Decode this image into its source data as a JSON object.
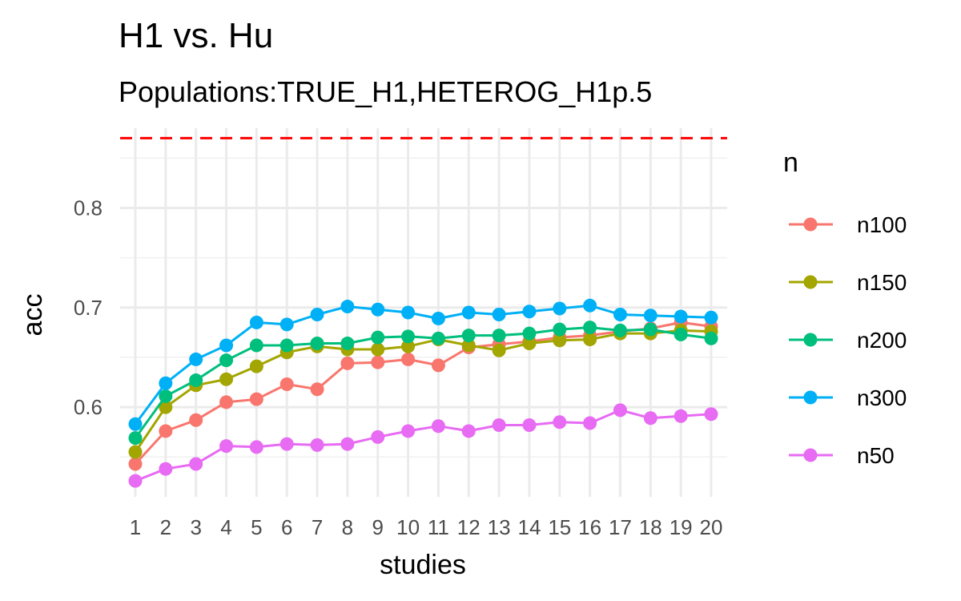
{
  "chart_data": {
    "type": "line",
    "title": "H1 vs. Hu",
    "subtitle": "Populations:TRUE_H1,HETEROG_H1p.5",
    "xlabel": "studies",
    "ylabel": "acc",
    "legend_title": "n",
    "legend_position": "right",
    "categories": [
      "1",
      "2",
      "3",
      "4",
      "5",
      "6",
      "7",
      "8",
      "9",
      "10",
      "11",
      "12",
      "13",
      "14",
      "15",
      "16",
      "17",
      "18",
      "19",
      "20"
    ],
    "ylim": [
      0.51,
      0.88
    ],
    "yticks": [
      0.6,
      0.7,
      0.8
    ],
    "y_tick_labels": [
      "0.6",
      "0.7",
      "0.8"
    ],
    "grid": true,
    "reference_line": {
      "y": 0.87,
      "style": "dashed",
      "color": "#ff0000"
    },
    "series": [
      {
        "name": "n100",
        "color": "#F8766D",
        "values": [
          0.543,
          0.576,
          0.587,
          0.605,
          0.608,
          0.623,
          0.618,
          0.644,
          0.645,
          0.648,
          0.642,
          0.66,
          0.663,
          0.666,
          0.67,
          0.672,
          0.676,
          0.679,
          0.685,
          0.681
        ]
      },
      {
        "name": "n150",
        "color": "#A3A500",
        "values": [
          0.555,
          0.6,
          0.622,
          0.628,
          0.641,
          0.655,
          0.661,
          0.658,
          0.658,
          0.661,
          0.668,
          0.662,
          0.657,
          0.664,
          0.667,
          0.668,
          0.674,
          0.674,
          0.677,
          0.676
        ]
      },
      {
        "name": "n200",
        "color": "#00BF7D",
        "values": [
          0.569,
          0.611,
          0.627,
          0.647,
          0.662,
          0.662,
          0.664,
          0.664,
          0.67,
          0.671,
          0.669,
          0.672,
          0.672,
          0.674,
          0.678,
          0.68,
          0.677,
          0.678,
          0.673,
          0.669
        ]
      },
      {
        "name": "n300",
        "color": "#00B0F6",
        "values": [
          0.583,
          0.624,
          0.648,
          0.662,
          0.685,
          0.683,
          0.693,
          0.701,
          0.698,
          0.695,
          0.689,
          0.695,
          0.693,
          0.696,
          0.699,
          0.702,
          0.693,
          0.692,
          0.691,
          0.69
        ]
      },
      {
        "name": "n50",
        "color": "#E76BF3",
        "values": [
          0.526,
          0.538,
          0.543,
          0.561,
          0.56,
          0.563,
          0.562,
          0.563,
          0.57,
          0.576,
          0.581,
          0.576,
          0.582,
          0.582,
          0.585,
          0.584,
          0.597,
          0.589,
          0.591,
          0.593
        ]
      }
    ]
  }
}
